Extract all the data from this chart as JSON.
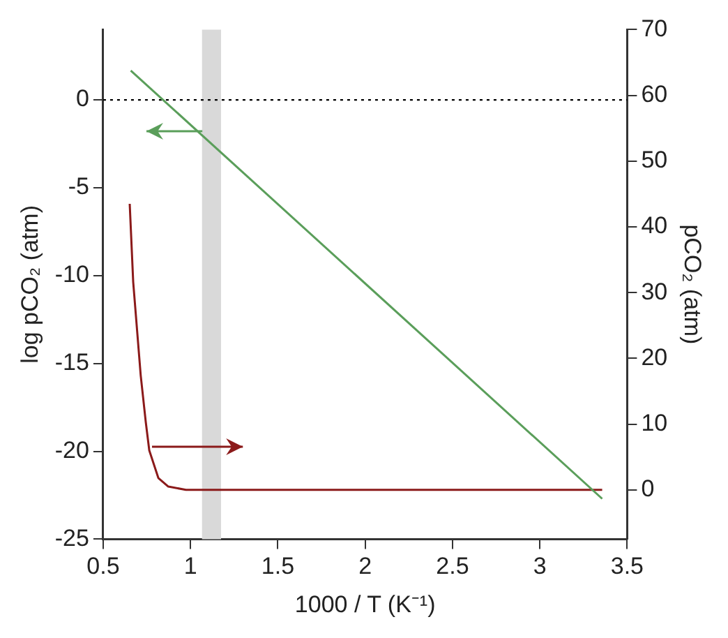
{
  "chart_data": {
    "type": "line",
    "xlabel": "1000 / T (K⁻¹)",
    "ylabel": "log pCO₂ (atm)",
    "y2label": "pCO₂ (atm)",
    "xlim": [
      0.5,
      3.5
    ],
    "xticks": [
      0.5,
      1,
      1.5,
      2,
      2.5,
      3,
      3.5
    ],
    "ylim": [
      -25,
      4
    ],
    "yticks": [
      -25,
      -20,
      -15,
      -10,
      -5,
      0
    ],
    "y2lim": [
      -7.5,
      70
    ],
    "y2ticks": [
      0,
      10,
      20,
      30,
      40,
      50,
      60,
      70
    ],
    "series": [
      {
        "color": "#5a9e5a",
        "x": [
          0.658,
          3.357
        ],
        "values": [
          1.67,
          -22.7
        ]
      },
      {
        "color": "#8b1a1a",
        "axis": "y2",
        "x": [
          0.652,
          0.672,
          0.715,
          0.744,
          0.764,
          0.816,
          0.873,
          0.974,
          3.357
        ],
        "values": [
          43.5,
          31.6,
          17.4,
          10.3,
          6.0,
          1.8,
          0.5,
          0,
          0
        ]
      }
    ],
    "ref_lines": [
      {
        "axis": "y",
        "value": 0,
        "color": "#000000",
        "line_style": "dotted"
      }
    ],
    "bands": [
      {
        "axis": "x",
        "from": 1.066,
        "to": 1.175,
        "color": "#d9d9d9"
      }
    ],
    "grid": false,
    "legend": false,
    "marker": "none",
    "line_style": "solid"
  }
}
